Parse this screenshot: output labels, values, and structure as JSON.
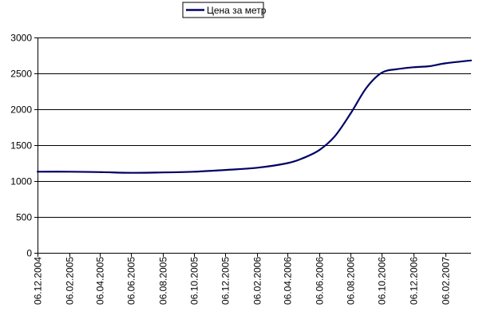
{
  "chart_data": {
    "type": "line",
    "title": "",
    "xlabel": "",
    "ylabel": "",
    "ylim": [
      0,
      3000
    ],
    "yticks": [
      0,
      500,
      1000,
      1500,
      2000,
      2500,
      3000
    ],
    "xlim": [
      "2004-12-06",
      "2007-03-28"
    ],
    "xticks": [
      "06.12.2004",
      "06.02.2005",
      "06.04.2005",
      "06.06.2005",
      "06.08.2005",
      "06.10.2005",
      "06.12.2005",
      "06.02.2006",
      "06.04.2006",
      "06.06.2006",
      "06.08.2006",
      "06.10.2006",
      "06.12.2006",
      "06.02.2007"
    ],
    "grid": "horizontal",
    "legend_position": "top",
    "series": [
      {
        "name": "Цена за метр",
        "color": "#000066",
        "points": [
          {
            "x": "2004-12-06",
            "y": 1130
          },
          {
            "x": "2005-02-06",
            "y": 1130
          },
          {
            "x": "2005-04-06",
            "y": 1125
          },
          {
            "x": "2005-06-06",
            "y": 1115
          },
          {
            "x": "2005-08-06",
            "y": 1120
          },
          {
            "x": "2005-10-06",
            "y": 1130
          },
          {
            "x": "2005-12-06",
            "y": 1155
          },
          {
            "x": "2006-02-06",
            "y": 1185
          },
          {
            "x": "2006-04-06",
            "y": 1250
          },
          {
            "x": "2006-05-06",
            "y": 1320
          },
          {
            "x": "2006-06-06",
            "y": 1430
          },
          {
            "x": "2006-07-06",
            "y": 1620
          },
          {
            "x": "2006-08-06",
            "y": 1940
          },
          {
            "x": "2006-09-06",
            "y": 2300
          },
          {
            "x": "2006-10-06",
            "y": 2510
          },
          {
            "x": "2006-11-06",
            "y": 2560
          },
          {
            "x": "2006-12-06",
            "y": 2585
          },
          {
            "x": "2007-01-06",
            "y": 2600
          },
          {
            "x": "2007-02-06",
            "y": 2640
          },
          {
            "x": "2007-03-28",
            "y": 2680
          }
        ]
      }
    ]
  }
}
